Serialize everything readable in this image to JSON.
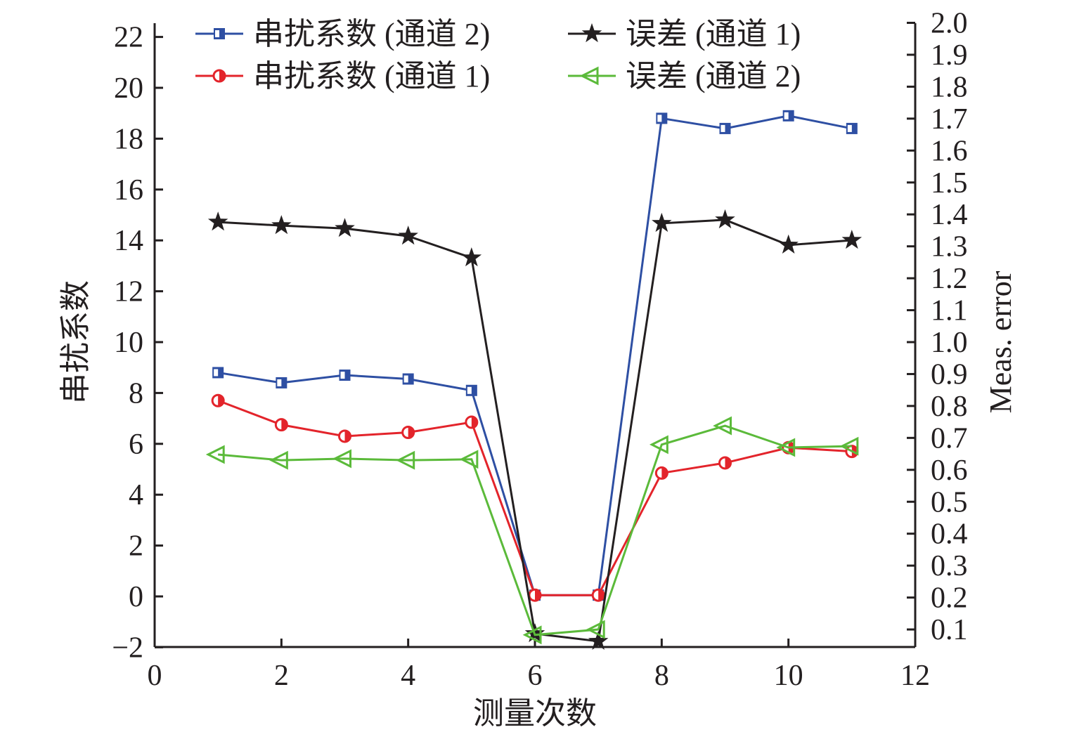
{
  "chart_data": {
    "type": "line",
    "xlabel": "测量次数",
    "ylabel_left": "串扰系数",
    "ylabel_right": "Meas. error",
    "xlim": [
      0,
      12
    ],
    "xticks": [
      "0",
      "2",
      "4",
      "6",
      "8",
      "10",
      "12"
    ],
    "ylim_left": [
      -2,
      22
    ],
    "yticks_left": [
      "−2",
      "0",
      "2",
      "4",
      "6",
      "8",
      "10",
      "12",
      "14",
      "16",
      "18",
      "20",
      "22"
    ],
    "ylim_right": [
      0.045,
      2.0
    ],
    "yticks_right": [
      "0.1",
      "0.2",
      "0.3",
      "0.4",
      "0.5",
      "0.6",
      "0.7",
      "0.8",
      "0.9",
      "1.0",
      "1.1",
      "1.2",
      "1.3",
      "1.4",
      "1.5",
      "1.6",
      "1.7",
      "1.8",
      "1.9",
      "2.0"
    ],
    "grid": false,
    "legend_position": "top",
    "x": [
      1,
      2,
      3,
      4,
      5,
      6,
      7,
      8,
      9,
      10,
      11
    ],
    "series": [
      {
        "name": "串扰系数 (通道 2)",
        "axis": "left",
        "color": "#2e4fa3",
        "marker": "half-square",
        "values": [
          8.8,
          8.4,
          8.7,
          8.55,
          8.1,
          0.05,
          0.05,
          18.8,
          18.4,
          18.9,
          18.4
        ]
      },
      {
        "name": "串扰系数 (通道 1)",
        "axis": "left",
        "color": "#e3242b",
        "marker": "half-circle",
        "values": [
          7.7,
          6.75,
          6.3,
          6.45,
          6.85,
          0.05,
          0.05,
          4.85,
          5.25,
          5.85,
          5.7
        ]
      },
      {
        "name": "误差 (通道 1)",
        "axis": "right",
        "color": "#231f20",
        "marker": "star",
        "values": [
          1.376,
          1.365,
          1.356,
          1.332,
          1.264,
          0.087,
          0.063,
          1.372,
          1.383,
          1.304,
          1.319
        ]
      },
      {
        "name": "误差 (通道 2)",
        "axis": "right",
        "color": "#5bba3a",
        "marker": "left-triangle",
        "values": [
          0.648,
          0.63,
          0.635,
          0.63,
          0.633,
          0.083,
          0.1,
          0.679,
          0.738,
          0.67,
          0.674
        ]
      }
    ]
  }
}
